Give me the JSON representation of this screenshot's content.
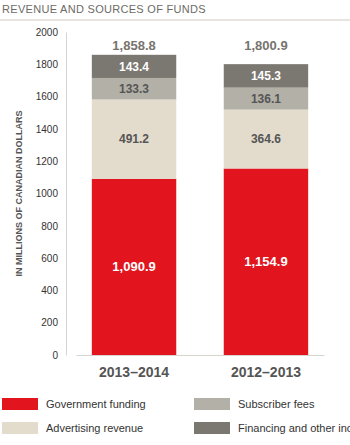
{
  "chart_data": {
    "type": "bar",
    "title": "REVENUE AND SOURCES OF FUNDS",
    "ylabel": "IN MILLIONS OF CANADIAN DOLLARS",
    "categories": [
      "2013–2014",
      "2012–2013"
    ],
    "stacked": true,
    "data_labels": true,
    "legend": "bottom",
    "grid": false,
    "series": [
      {
        "name": "Government funding",
        "color": "#e2141e",
        "values": [
          1090.9,
          1154.9
        ],
        "value_labels": [
          "1,090.9",
          "1,154.9"
        ]
      },
      {
        "name": "Advertising revenue",
        "color": "#e3dccd",
        "values": [
          491.2,
          364.6
        ],
        "value_labels": [
          "491.2",
          "364.6"
        ]
      },
      {
        "name": "Subscriber fees",
        "color": "#b3b0a8",
        "values": [
          133.3,
          136.1
        ],
        "value_labels": [
          "133.3",
          "136.1"
        ]
      },
      {
        "name": "Financing and other income",
        "color": "#7b7771",
        "values": [
          143.4,
          145.3
        ],
        "value_labels": [
          "143.4",
          "145.3"
        ]
      }
    ],
    "totals": [
      1858.8,
      1800.9
    ],
    "total_labels": [
      "1,858.8",
      "1,800.9"
    ],
    "ylim": [
      0,
      2000
    ],
    "yticks": [
      0,
      200,
      400,
      600,
      800,
      1000,
      1200,
      1400,
      1600,
      1800,
      2000
    ]
  }
}
